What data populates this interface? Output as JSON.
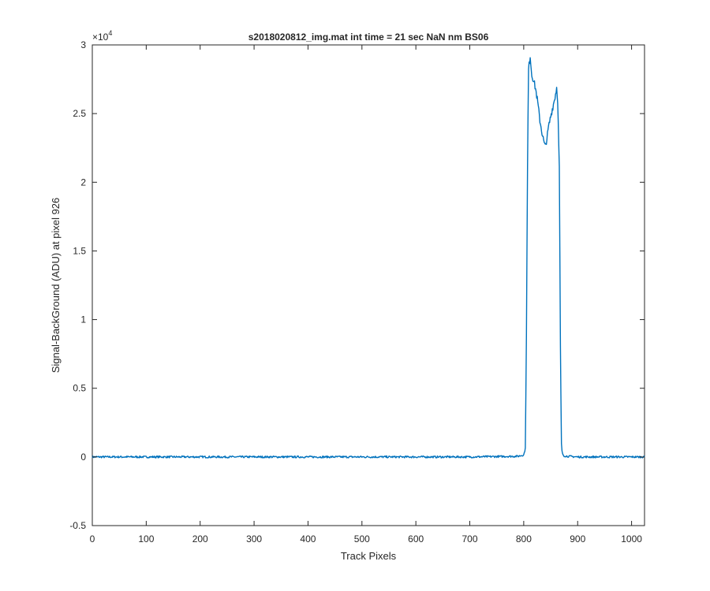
{
  "chart_data": {
    "type": "line",
    "title": "s2018020812_img.mat int time = 21 sec  NaN nm BS06",
    "xlabel": "Track Pixels",
    "ylabel": "Signal-BackGround (ADU) at pixel 926",
    "y_exponent_label": "×10",
    "y_exponent_power": "4",
    "xlim": [
      0,
      1024
    ],
    "ylim": [
      -5000,
      30000
    ],
    "x_ticks": [
      0,
      100,
      200,
      300,
      400,
      500,
      600,
      700,
      800,
      900,
      1000
    ],
    "x_tick_labels": [
      "0",
      "100",
      "200",
      "300",
      "400",
      "500",
      "600",
      "700",
      "800",
      "900",
      "1000"
    ],
    "y_ticks": [
      -5000,
      0,
      5000,
      10000,
      15000,
      20000,
      25000,
      30000
    ],
    "y_tick_labels": [
      "-0.5",
      "0",
      "0.5",
      "1",
      "1.5",
      "2",
      "2.5",
      "3"
    ],
    "grid": false,
    "line_color": "#0072BD",
    "series": [
      {
        "x": [
          0,
          100,
          200,
          300,
          400,
          500,
          600,
          700,
          790,
          800,
          803,
          805,
          807,
          809,
          812,
          815,
          818,
          822,
          826,
          830,
          834,
          838,
          840,
          843,
          846,
          850,
          854,
          858,
          861,
          863,
          866,
          868,
          870,
          872,
          875,
          880,
          900,
          1000,
          1024
        ],
        "y": [
          0,
          0,
          0,
          0,
          0,
          0,
          0,
          0,
          50,
          150,
          600,
          9000,
          21000,
          28200,
          29200,
          27800,
          27500,
          26800,
          25800,
          24500,
          23600,
          22800,
          22600,
          23200,
          24000,
          24800,
          25500,
          26200,
          26900,
          26000,
          21000,
          8000,
          800,
          200,
          80,
          50,
          0,
          0,
          0
        ]
      }
    ]
  }
}
